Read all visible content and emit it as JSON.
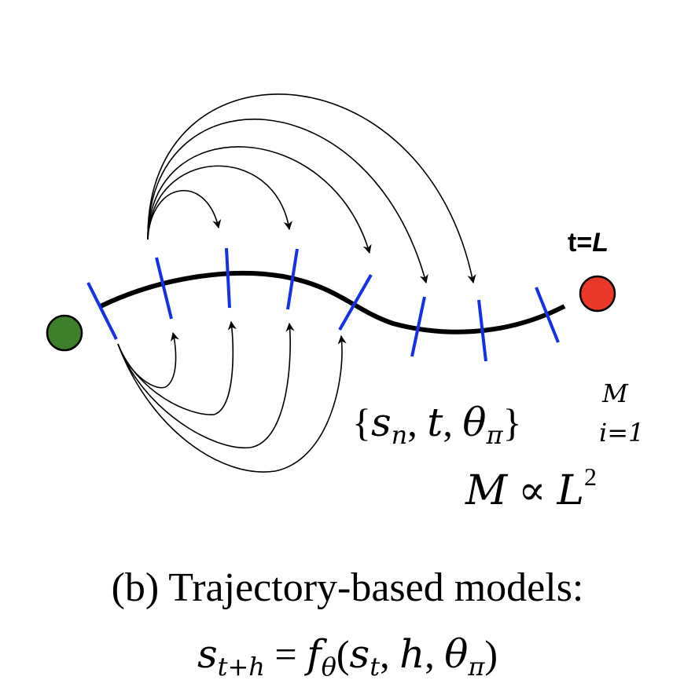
{
  "colors": {
    "start_node": "#3d7f2a",
    "end_node": "#e8392a",
    "tick": "#1630e6",
    "trajectory": "#000000",
    "arrow": "#000000"
  },
  "end_label": {
    "prefix": "t=",
    "var": "L"
  },
  "set_expr": {
    "open": "{",
    "s": "s",
    "s_sub": "n",
    "comma1": ", ",
    "t": "t",
    "comma2": ", ",
    "theta": "θ",
    "theta_sub": "π",
    "close": "}",
    "sup": "M",
    "sub": "i=1"
  },
  "prop_expr": {
    "lhs": "M",
    "op": "∝",
    "rhs": "L",
    "rhs_sup": "2"
  },
  "caption": {
    "line1": "(b) Trajectory-based models:",
    "s": "s",
    "s_sub": "t+h",
    "eq": " = ",
    "f": "f",
    "f_sub": "θ",
    "open": "(",
    "arg_s": "s",
    "arg_s_sub": "t",
    "args_rest_1": ", ",
    "arg_h": "h",
    "args_rest_2": ", ",
    "arg_theta": "θ",
    "arg_theta_sub": "π",
    "close": ")"
  }
}
